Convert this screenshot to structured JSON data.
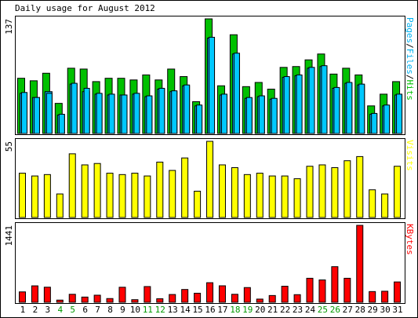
{
  "title": "Daily usage for August 2012",
  "colors": {
    "background": "#ffffff",
    "panel_bg": "#ffffff",
    "hits": "#00c000",
    "files": "#00b0f0",
    "pages": "#00c8ff",
    "visits": "#ffff00",
    "kbytes": "#ff0000",
    "weekday_label": "#000000",
    "weekend_label": "#009900"
  },
  "chart_data": [
    {
      "type": "bar",
      "id": "hits-files-pages",
      "title": "Daily usage for August 2012",
      "ymax_label": "137",
      "ylim": [
        0,
        137
      ],
      "legend_right": [
        {
          "text": "Pages",
          "color": "#00b0f0"
        },
        {
          "text": "/",
          "color": "#000000"
        },
        {
          "text": "Files",
          "color": "#00b0f0"
        },
        {
          "text": "/",
          "color": "#000000"
        },
        {
          "text": "Hits",
          "color": "#00c000"
        }
      ],
      "categories": [
        "1",
        "2",
        "3",
        "4",
        "5",
        "6",
        "7",
        "8",
        "9",
        "10",
        "11",
        "12",
        "13",
        "14",
        "15",
        "16",
        "17",
        "18",
        "19",
        "20",
        "21",
        "22",
        "23",
        "24",
        "25",
        "26",
        "27",
        "28",
        "29",
        "30",
        "31"
      ],
      "series": [
        {
          "name": "Hits",
          "values": [
            66,
            63,
            72,
            36,
            78,
            77,
            62,
            66,
            66,
            64,
            70,
            64,
            77,
            68,
            38,
            137,
            57,
            118,
            56,
            61,
            53,
            79,
            80,
            88,
            95,
            71,
            78,
            70,
            33,
            47,
            62
          ]
        },
        {
          "name": "Files",
          "values": [
            48,
            43,
            50,
            22,
            59,
            50,
            47,
            46,
            46,
            47,
            44,
            53,
            50,
            57,
            33,
            114,
            46,
            95,
            42,
            44,
            41,
            67,
            69,
            78,
            80,
            54,
            60,
            58,
            23,
            33,
            46
          ]
        },
        {
          "name": "Pages",
          "values": [
            49,
            43,
            48,
            23,
            60,
            54,
            48,
            47,
            46,
            48,
            45,
            54,
            51,
            58,
            34,
            115,
            47,
            96,
            43,
            45,
            42,
            68,
            70,
            79,
            81,
            55,
            61,
            59,
            24,
            34,
            47
          ]
        }
      ]
    },
    {
      "type": "bar",
      "id": "visits",
      "ymax_label": "55",
      "ylim": [
        0,
        55
      ],
      "legend_right": [
        {
          "text": "Visits",
          "color": "#ffff00"
        }
      ],
      "categories": [
        "1",
        "2",
        "3",
        "4",
        "5",
        "6",
        "7",
        "8",
        "9",
        "10",
        "11",
        "12",
        "13",
        "14",
        "15",
        "16",
        "17",
        "18",
        "19",
        "20",
        "21",
        "22",
        "23",
        "24",
        "25",
        "26",
        "27",
        "28",
        "29",
        "30",
        "31"
      ],
      "series": [
        {
          "name": "Visits",
          "values": [
            32,
            30,
            31,
            17,
            46,
            38,
            39,
            32,
            31,
            32,
            30,
            40,
            34,
            43,
            19,
            55,
            38,
            36,
            31,
            32,
            30,
            30,
            28,
            37,
            38,
            36,
            41,
            44,
            20,
            17,
            37
          ]
        }
      ]
    },
    {
      "type": "bar",
      "id": "kbytes",
      "ymax_label": "1441",
      "ylim": [
        0,
        1441
      ],
      "legend_right": [
        {
          "text": "KBytes",
          "color": "#ff0000"
        }
      ],
      "categories": [
        "1",
        "2",
        "3",
        "4",
        "5",
        "6",
        "7",
        "8",
        "9",
        "10",
        "11",
        "12",
        "13",
        "14",
        "15",
        "16",
        "17",
        "18",
        "19",
        "20",
        "21",
        "22",
        "23",
        "24",
        "25",
        "26",
        "27",
        "28",
        "29",
        "30",
        "31"
      ],
      "series": [
        {
          "name": "KBytes",
          "values": [
            195,
            308,
            283,
            41,
            150,
            98,
            133,
            70,
            282,
            49,
            295,
            67,
            146,
            240,
            170,
            367,
            309,
            150,
            276,
            60,
            127,
            301,
            143,
            450,
            419,
            667,
            450,
            1441,
            201,
            207,
            381
          ]
        }
      ]
    }
  ],
  "x_labels": [
    {
      "text": "1",
      "weekend": false
    },
    {
      "text": "2",
      "weekend": false
    },
    {
      "text": "3",
      "weekend": false
    },
    {
      "text": "4",
      "weekend": true
    },
    {
      "text": "5",
      "weekend": true
    },
    {
      "text": "6",
      "weekend": false
    },
    {
      "text": "7",
      "weekend": false
    },
    {
      "text": "8",
      "weekend": false
    },
    {
      "text": "9",
      "weekend": false
    },
    {
      "text": "10",
      "weekend": false
    },
    {
      "text": "11",
      "weekend": true
    },
    {
      "text": "12",
      "weekend": true
    },
    {
      "text": "13",
      "weekend": false
    },
    {
      "text": "14",
      "weekend": false
    },
    {
      "text": "15",
      "weekend": false
    },
    {
      "text": "16",
      "weekend": false
    },
    {
      "text": "17",
      "weekend": false
    },
    {
      "text": "18",
      "weekend": true
    },
    {
      "text": "19",
      "weekend": true
    },
    {
      "text": "20",
      "weekend": false
    },
    {
      "text": "21",
      "weekend": false
    },
    {
      "text": "22",
      "weekend": false
    },
    {
      "text": "23",
      "weekend": false
    },
    {
      "text": "24",
      "weekend": false
    },
    {
      "text": "25",
      "weekend": true
    },
    {
      "text": "26",
      "weekend": true
    },
    {
      "text": "27",
      "weekend": false
    },
    {
      "text": "28",
      "weekend": false
    },
    {
      "text": "29",
      "weekend": false
    },
    {
      "text": "30",
      "weekend": false
    },
    {
      "text": "31",
      "weekend": false
    }
  ]
}
